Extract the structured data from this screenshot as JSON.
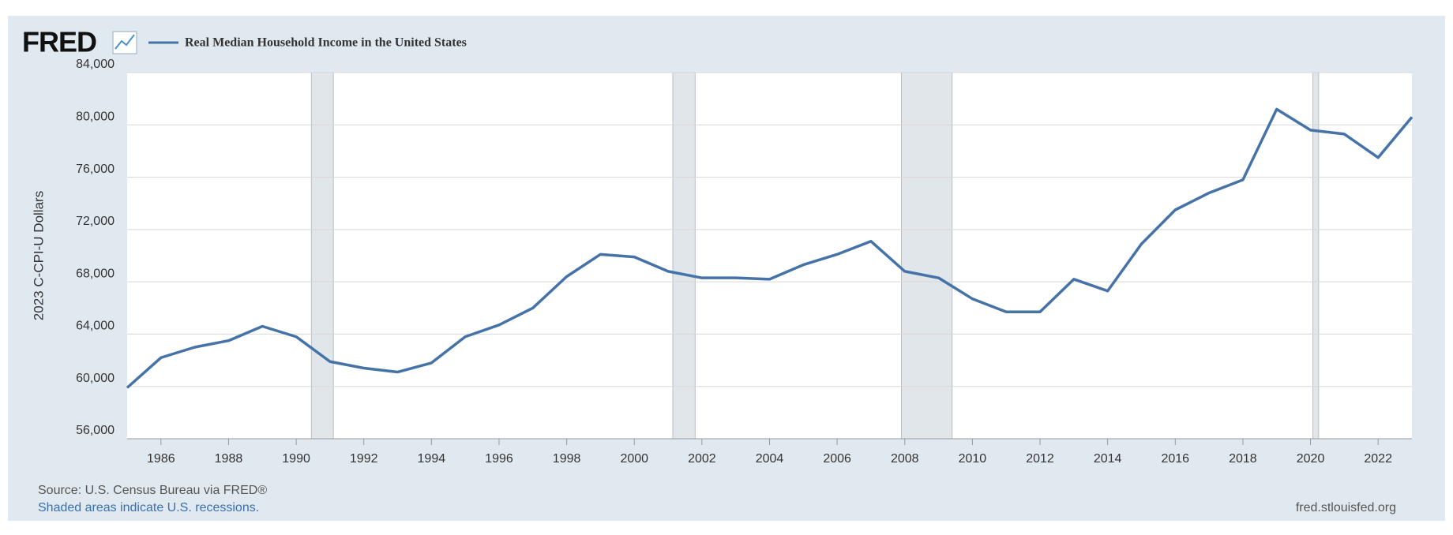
{
  "chart_data": {
    "type": "line",
    "logo": "FRED",
    "ylabel": "2023 C-CPI-U Dollars",
    "x": [
      1985,
      1986,
      1987,
      1988,
      1989,
      1990,
      1991,
      1992,
      1993,
      1994,
      1995,
      1996,
      1997,
      1998,
      1999,
      2000,
      2001,
      2002,
      2003,
      2004,
      2005,
      2006,
      2007,
      2008,
      2009,
      2010,
      2011,
      2012,
      2013,
      2014,
      2015,
      2016,
      2017,
      2018,
      2019,
      2020,
      2021,
      2022,
      2023
    ],
    "series": [
      {
        "name": "Real Median Household Income in the United States",
        "color": "#4572a7",
        "values": [
          59900,
          62200,
          63000,
          63500,
          64600,
          63800,
          61900,
          61400,
          61100,
          61800,
          63800,
          64700,
          66000,
          68400,
          70100,
          69900,
          68800,
          68300,
          68300,
          68200,
          69300,
          70100,
          71100,
          68800,
          68300,
          66700,
          65700,
          65700,
          68200,
          67300,
          70900,
          73500,
          74800,
          75800,
          81200,
          79600,
          79300,
          77500,
          80600
        ]
      }
    ],
    "xlim": [
      1985,
      2023
    ],
    "xticks": [
      1986,
      1988,
      1990,
      1992,
      1994,
      1996,
      1998,
      2000,
      2002,
      2004,
      2006,
      2008,
      2010,
      2012,
      2014,
      2016,
      2018,
      2020,
      2022
    ],
    "ylim": [
      56000,
      84000
    ],
    "yticks": [
      {
        "value": 56000,
        "label": "56,000"
      },
      {
        "value": 60000,
        "label": "60,000"
      },
      {
        "value": 64000,
        "label": "64,000"
      },
      {
        "value": 68000,
        "label": "68,000"
      },
      {
        "value": 72000,
        "label": "72,000"
      },
      {
        "value": 76000,
        "label": "76,000"
      },
      {
        "value": 80000,
        "label": "80,000"
      },
      {
        "value": 84000,
        "label": "84,000"
      }
    ],
    "grid": true,
    "recessions": [
      [
        1990.45,
        1991.1
      ],
      [
        2001.14,
        2001.8
      ],
      [
        2007.9,
        2009.4
      ],
      [
        2020.07,
        2020.24
      ]
    ],
    "recession_color": "#e1e6ea",
    "source": "Source: U.S. Census Bureau via FRED®",
    "note": "Shaded areas indicate U.S. recessions.",
    "credit": "fred.stlouisfed.org"
  }
}
